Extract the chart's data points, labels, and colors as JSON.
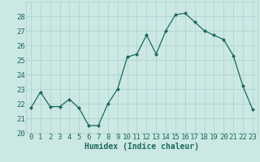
{
  "x": [
    0,
    1,
    2,
    3,
    4,
    5,
    6,
    7,
    8,
    9,
    10,
    11,
    12,
    13,
    14,
    15,
    16,
    17,
    18,
    19,
    20,
    21,
    22,
    23
  ],
  "y": [
    21.7,
    22.8,
    21.8,
    21.8,
    22.3,
    21.7,
    20.5,
    20.5,
    22.0,
    23.0,
    25.2,
    25.4,
    26.7,
    25.4,
    27.0,
    28.1,
    28.2,
    27.6,
    27.0,
    26.7,
    26.4,
    25.3,
    23.2,
    21.6
  ],
  "line_color": "#1a6b5a",
  "marker": "D",
  "marker_size": 2.0,
  "bg_color": "#cce8e4",
  "grid_color": "#aacfcb",
  "xlabel": "Humidex (Indice chaleur)",
  "ylim": [
    20,
    29
  ],
  "xlim": [
    -0.5,
    23.5
  ],
  "yticks": [
    20,
    21,
    22,
    23,
    24,
    25,
    26,
    27,
    28
  ],
  "xticks": [
    0,
    1,
    2,
    3,
    4,
    5,
    6,
    7,
    8,
    9,
    10,
    11,
    12,
    13,
    14,
    15,
    16,
    17,
    18,
    19,
    20,
    21,
    22,
    23
  ],
  "tick_color": "#1a6b5a",
  "label_fontsize": 7,
  "tick_fontsize": 6.5
}
